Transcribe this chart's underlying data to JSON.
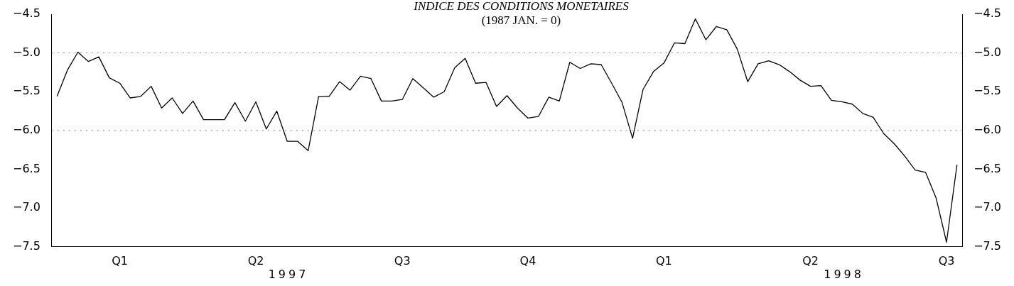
{
  "chart_data": {
    "type": "line",
    "title": "INDICE DES CONDITIONS MONETAIRES",
    "subtitle": "(1987 JAN. = 0)",
    "categories": [
      null,
      null,
      null,
      null,
      null,
      null,
      "Q1",
      null,
      null,
      null,
      null,
      null,
      null,
      null,
      null,
      null,
      null,
      null,
      null,
      "Q2",
      null,
      null,
      null,
      null,
      null,
      null,
      null,
      null,
      null,
      null,
      null,
      null,
      null,
      "Q3",
      null,
      null,
      null,
      null,
      null,
      null,
      null,
      null,
      null,
      null,
      null,
      "Q4",
      null,
      null,
      null,
      null,
      null,
      null,
      null,
      null,
      null,
      null,
      null,
      null,
      "Q1",
      null,
      null,
      null,
      null,
      null,
      null,
      null,
      null,
      null,
      null,
      null,
      null,
      null,
      "Q2",
      null,
      null,
      null,
      null,
      null,
      null,
      null,
      null,
      null,
      null,
      null,
      null,
      "Q3",
      null
    ],
    "series": [
      {
        "color": "#000000",
        "values": [
          -5.56,
          -5.22,
          -4.99,
          -5.11,
          -5.05,
          -5.32,
          -5.39,
          -5.58,
          -5.56,
          -5.43,
          -5.71,
          -5.58,
          -5.78,
          -5.62,
          -5.86,
          -5.86,
          -5.86,
          -5.64,
          -5.88,
          -5.63,
          -5.98,
          -5.75,
          -6.14,
          -6.14,
          -6.26,
          -5.56,
          -5.56,
          -5.37,
          -5.48,
          -5.3,
          -5.33,
          -5.62,
          -5.62,
          -5.6,
          -5.33,
          -5.45,
          -5.57,
          -5.5,
          -5.19,
          -5.07,
          -5.39,
          -5.38,
          -5.69,
          -5.55,
          -5.71,
          -5.84,
          -5.82,
          -5.57,
          -5.62,
          -5.12,
          -5.2,
          -5.14,
          -5.15,
          -5.39,
          -5.64,
          -6.1,
          -5.47,
          -5.24,
          -5.13,
          -4.87,
          -4.88,
          -4.56,
          -4.83,
          -4.66,
          -4.7,
          -4.95,
          -5.37,
          -5.14,
          -5.1,
          -5.15,
          -5.24,
          -5.35,
          -5.43,
          -5.42,
          -5.61,
          -5.63,
          -5.66,
          -5.78,
          -5.83,
          -6.04,
          -6.17,
          -6.33,
          -6.51,
          -6.54,
          -6.87,
          -7.44,
          -6.44
        ]
      }
    ],
    "ylim": [
      -7.5,
      -4.5
    ],
    "yticks": [
      {
        "value": -7.5,
        "label": "−7.5"
      },
      {
        "value": -7,
        "label": "−7.0"
      },
      {
        "value": -6.5,
        "label": "−6.5"
      },
      {
        "value": -6,
        "label": "−6.0"
      },
      {
        "value": -5.5,
        "label": "−5.5"
      },
      {
        "value": -5,
        "label": "−5.0"
      },
      {
        "value": -4.5,
        "label": "−4.5"
      }
    ],
    "y2lim": [
      -7.5,
      -4.5
    ],
    "y2ticks": [
      {
        "value": -7.5,
        "label": "−7.5"
      },
      {
        "value": -7,
        "label": "−7.0"
      },
      {
        "value": -6.5,
        "label": "−6.5"
      },
      {
        "value": -6,
        "label": "−6.0"
      },
      {
        "value": -5.5,
        "label": "−5.5"
      },
      {
        "value": -5,
        "label": "−5.0"
      },
      {
        "value": -4.5,
        "label": "−4.5"
      }
    ],
    "ref_lines": [
      {
        "axis": "y",
        "value": -5,
        "line_style": "dotted",
        "color": "#808080"
      },
      {
        "axis": "y",
        "value": -6,
        "line_style": "dotted",
        "color": "#808080"
      }
    ],
    "annotations": [
      "1997",
      "1998"
    ],
    "grid": false,
    "legend": false,
    "marker": "none",
    "line_style": "solid"
  }
}
